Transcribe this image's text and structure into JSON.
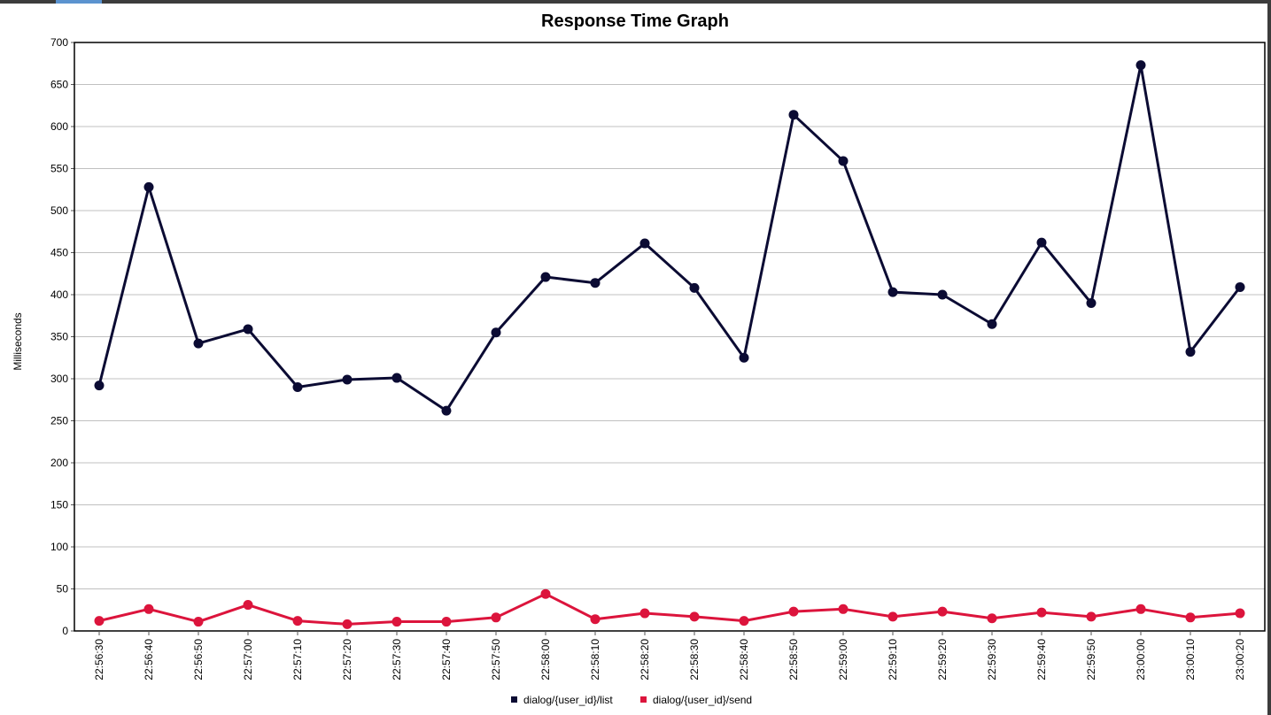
{
  "chart_data": {
    "type": "line",
    "title": "Response Time Graph",
    "xlabel": "",
    "ylabel": "Milliseconds",
    "ylim": [
      0,
      700
    ],
    "yticks": [
      0,
      50,
      100,
      150,
      200,
      250,
      300,
      350,
      400,
      450,
      500,
      550,
      600,
      650,
      700
    ],
    "grid": true,
    "legend_position": "bottom",
    "categories": [
      "22:56:30",
      "22:56:40",
      "22:56:50",
      "22:57:00",
      "22:57:10",
      "22:57:20",
      "22:57:30",
      "22:57:40",
      "22:57:50",
      "22:58:00",
      "22:58:10",
      "22:58:20",
      "22:58:30",
      "22:58:40",
      "22:58:50",
      "22:59:00",
      "22:59:10",
      "22:59:20",
      "22:59:30",
      "22:59:40",
      "22:59:50",
      "23:00:00",
      "23:00:10",
      "23:00:20"
    ],
    "series": [
      {
        "name": "dialog/{user_id}/list",
        "color": "#0b0b33",
        "values": [
          292,
          528,
          342,
          359,
          290,
          299,
          301,
          262,
          355,
          421,
          414,
          461,
          408,
          325,
          614,
          559,
          403,
          400,
          365,
          462,
          390,
          673,
          332,
          409
        ]
      },
      {
        "name": "dialog/{user_id}/send",
        "color": "#dc143c",
        "values": [
          12,
          26,
          11,
          31,
          12,
          8,
          11,
          11,
          16,
          44,
          14,
          21,
          17,
          12,
          23,
          26,
          17,
          23,
          15,
          22,
          17,
          26,
          16,
          21
        ]
      }
    ]
  }
}
